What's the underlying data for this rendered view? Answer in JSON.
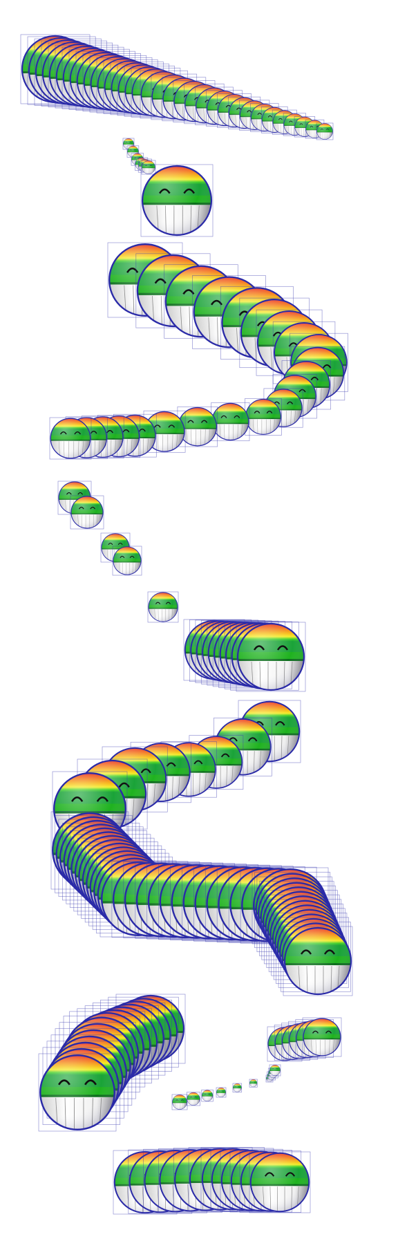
{
  "scene": {
    "description_name": "rainbow-smiley-trails",
    "background": "#ffffff",
    "frame_color": "#3a3ab0",
    "smiley_colors": {
      "rainbow": [
        "#e8242a",
        "#f47a20",
        "#f7c21a",
        "#f4ec2a",
        "#3fcf2a",
        "#1aa338"
      ],
      "band": "#1fb21f",
      "band_dark": "#0b6d1b",
      "teeth": "#ffffff",
      "teeth_shadow": "#9a9a9a",
      "rim": "#2a2aa8",
      "eye": "#111111"
    },
    "icon_name": "grinning-rainbow-smiley-icon",
    "trail_count": 8
  }
}
